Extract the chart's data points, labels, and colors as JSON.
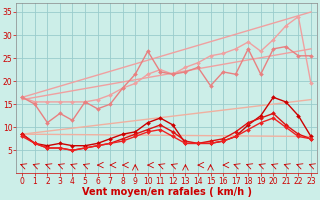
{
  "background_color": "#cceee8",
  "grid_color": "#99cccc",
  "xlabel": "Vent moyen/en rafales ( km/h )",
  "xlim": [
    -0.5,
    23.5
  ],
  "ylim": [
    0,
    37
  ],
  "yticks": [
    5,
    10,
    15,
    20,
    25,
    30,
    35
  ],
  "xticks": [
    0,
    1,
    2,
    3,
    4,
    5,
    6,
    7,
    8,
    9,
    10,
    11,
    12,
    13,
    14,
    15,
    16,
    17,
    18,
    19,
    20,
    21,
    22,
    23
  ],
  "series": [
    {
      "x": [
        0,
        23
      ],
      "y": [
        16.5,
        35.0
      ],
      "color": "#f0a0a0",
      "lw": 1.0,
      "marker": null
    },
    {
      "x": [
        0,
        23
      ],
      "y": [
        16.0,
        27.0
      ],
      "color": "#f0a0a0",
      "lw": 1.0,
      "marker": null
    },
    {
      "x": [
        0,
        23
      ],
      "y": [
        8.5,
        16.0
      ],
      "color": "#f0b0a0",
      "lw": 1.0,
      "marker": null
    },
    {
      "x": [
        0,
        23
      ],
      "y": [
        8.5,
        8.0
      ],
      "color": "#f0b0a0",
      "lw": 1.0,
      "marker": null
    },
    {
      "x": [
        0,
        1,
        2,
        3,
        4,
        5,
        6,
        7,
        8,
        9,
        10,
        11,
        12,
        13,
        14,
        15,
        16,
        17,
        18,
        19,
        20,
        21,
        22,
        23
      ],
      "y": [
        16.5,
        15.5,
        15.5,
        15.5,
        15.5,
        15.5,
        16.0,
        17.0,
        18.5,
        19.5,
        21.5,
        22.5,
        21.5,
        23.0,
        24.0,
        25.5,
        26.0,
        27.0,
        28.5,
        26.5,
        29.0,
        32.0,
        34.0,
        19.5
      ],
      "color": "#f0a0a0",
      "lw": 1.0,
      "marker": "D",
      "ms": 2.0
    },
    {
      "x": [
        0,
        1,
        2,
        3,
        4,
        5,
        6,
        7,
        8,
        9,
        10,
        11,
        12,
        13,
        14,
        15,
        16,
        17,
        18,
        19,
        20,
        21,
        22,
        23
      ],
      "y": [
        16.5,
        15.0,
        11.0,
        13.0,
        11.5,
        15.5,
        14.0,
        15.0,
        18.5,
        21.5,
        26.5,
        22.0,
        21.5,
        22.0,
        23.0,
        19.0,
        22.0,
        21.5,
        27.0,
        21.5,
        27.0,
        27.5,
        25.5,
        25.5
      ],
      "color": "#e88080",
      "lw": 1.0,
      "marker": "D",
      "ms": 2.0
    },
    {
      "x": [
        0,
        1,
        2,
        3,
        4,
        5,
        6,
        7,
        8,
        9,
        10,
        11,
        12,
        13,
        14,
        15,
        16,
        17,
        18,
        19,
        20,
        21,
        22,
        23
      ],
      "y": [
        8.5,
        6.5,
        6.0,
        6.5,
        6.0,
        6.0,
        6.5,
        7.5,
        8.5,
        9.0,
        11.0,
        12.0,
        10.5,
        6.5,
        6.5,
        6.5,
        7.0,
        8.0,
        10.5,
        12.5,
        16.5,
        15.5,
        12.5,
        8.0
      ],
      "color": "#cc0000",
      "lw": 1.0,
      "marker": "D",
      "ms": 2.0
    },
    {
      "x": [
        0,
        1,
        2,
        3,
        4,
        5,
        6,
        7,
        8,
        9,
        10,
        11,
        12,
        13,
        14,
        15,
        16,
        17,
        18,
        19,
        20,
        21,
        22,
        23
      ],
      "y": [
        8.5,
        6.5,
        5.5,
        5.5,
        5.0,
        5.5,
        6.0,
        6.5,
        7.5,
        8.5,
        9.5,
        10.5,
        9.0,
        7.0,
        6.5,
        7.0,
        7.5,
        9.0,
        11.0,
        12.0,
        13.0,
        10.5,
        8.5,
        7.5
      ],
      "color": "#dd1111",
      "lw": 1.0,
      "marker": "D",
      "ms": 2.0
    },
    {
      "x": [
        0,
        1,
        2,
        3,
        4,
        5,
        6,
        7,
        8,
        9,
        10,
        11,
        12,
        13,
        14,
        15,
        16,
        17,
        18,
        19,
        20,
        21,
        22,
        23
      ],
      "y": [
        8.0,
        6.5,
        5.5,
        5.5,
        5.0,
        5.5,
        6.0,
        6.5,
        7.0,
        8.0,
        9.0,
        9.5,
        8.0,
        6.5,
        6.5,
        6.5,
        7.0,
        8.0,
        9.5,
        11.0,
        12.0,
        10.0,
        8.0,
        7.5
      ],
      "color": "#ee2222",
      "lw": 1.0,
      "marker": "D",
      "ms": 2.0
    }
  ],
  "wind_arrows": {
    "y": 1.8,
    "angles_deg": [
      225,
      225,
      225,
      225,
      225,
      225,
      270,
      270,
      270,
      180,
      270,
      225,
      225,
      180,
      270,
      180,
      270,
      225,
      225,
      225,
      225,
      225,
      225,
      225
    ],
    "color": "#cc0000",
    "size": 0.28
  },
  "tick_fontsize": 5.5,
  "xlabel_fontsize": 7.0
}
